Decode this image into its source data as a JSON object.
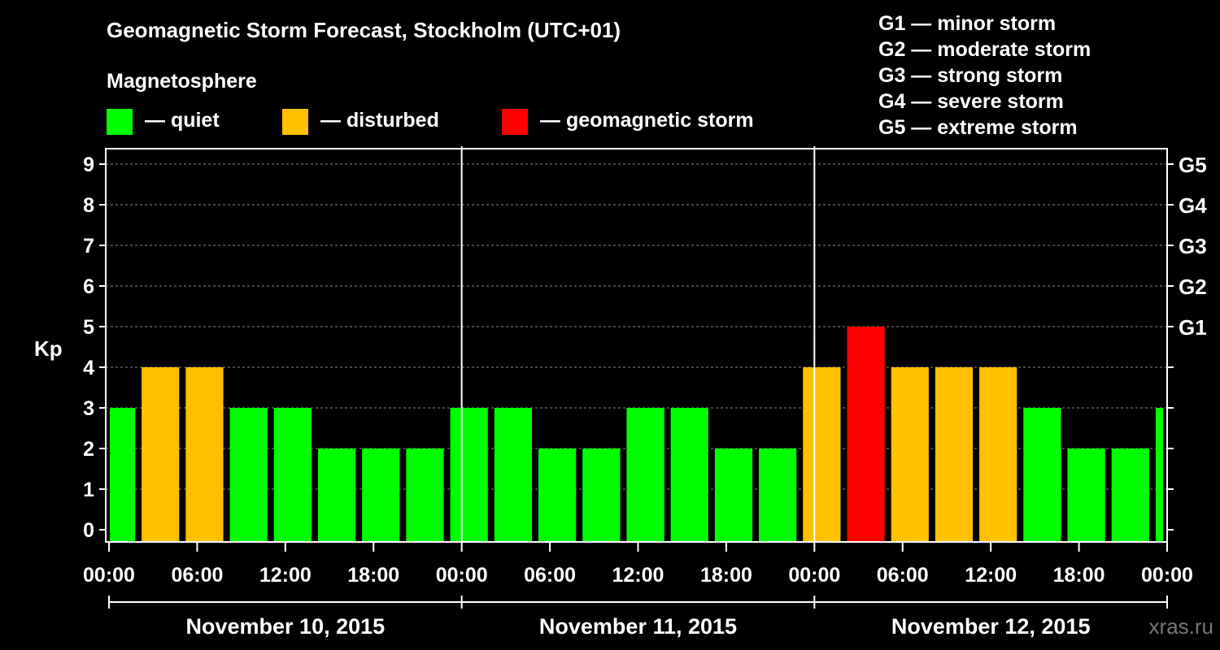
{
  "title": "Geomagnetic Storm Forecast, Stockholm (UTC+01)",
  "legend": {
    "title": "Magnetosphere",
    "items": [
      {
        "label": "— quiet",
        "color": "#00ff00"
      },
      {
        "label": "— disturbed",
        "color": "#ffc000"
      },
      {
        "label": "— geomagnetic storm",
        "color": "#ff0000"
      }
    ]
  },
  "g_scale": [
    "G1 — minor storm",
    "G2 — moderate storm",
    "G3 — strong storm",
    "G4 — severe storm",
    "G5 — extreme storm"
  ],
  "watermark": "xras.ru",
  "chart_data": {
    "type": "bar",
    "title": "Geomagnetic Storm Forecast, Stockholm (UTC+01)",
    "ylabel": "Kp",
    "ylim": [
      0,
      9
    ],
    "y_ticks": [
      "0",
      "1",
      "2",
      "3",
      "4",
      "5",
      "6",
      "7",
      "8",
      "9"
    ],
    "right_ticks": [
      {
        "kp": 5,
        "label": "G1"
      },
      {
        "kp": 6,
        "label": "G2"
      },
      {
        "kp": 7,
        "label": "G3"
      },
      {
        "kp": 8,
        "label": "G4"
      },
      {
        "kp": 9,
        "label": "G5"
      }
    ],
    "x_ticks": [
      "00:00",
      "06:00",
      "12:00",
      "18:00",
      "00:00",
      "06:00",
      "12:00",
      "18:00",
      "00:00",
      "06:00",
      "12:00",
      "18:00",
      "00:00"
    ],
    "days": [
      "November 10, 2015",
      "November 11, 2015",
      "November 12, 2015"
    ],
    "bar_interval_hours": 3,
    "first_bar_start_hour": -1,
    "values": [
      3,
      4,
      4,
      3,
      3,
      2,
      2,
      2,
      3,
      3,
      2,
      2,
      3,
      3,
      2,
      2,
      4,
      5,
      4,
      4,
      4,
      3,
      2,
      2,
      3
    ],
    "colors": {
      "quiet": "#00ff00",
      "disturbed": "#ffc000",
      "storm": "#ff0000"
    },
    "grid": true
  }
}
